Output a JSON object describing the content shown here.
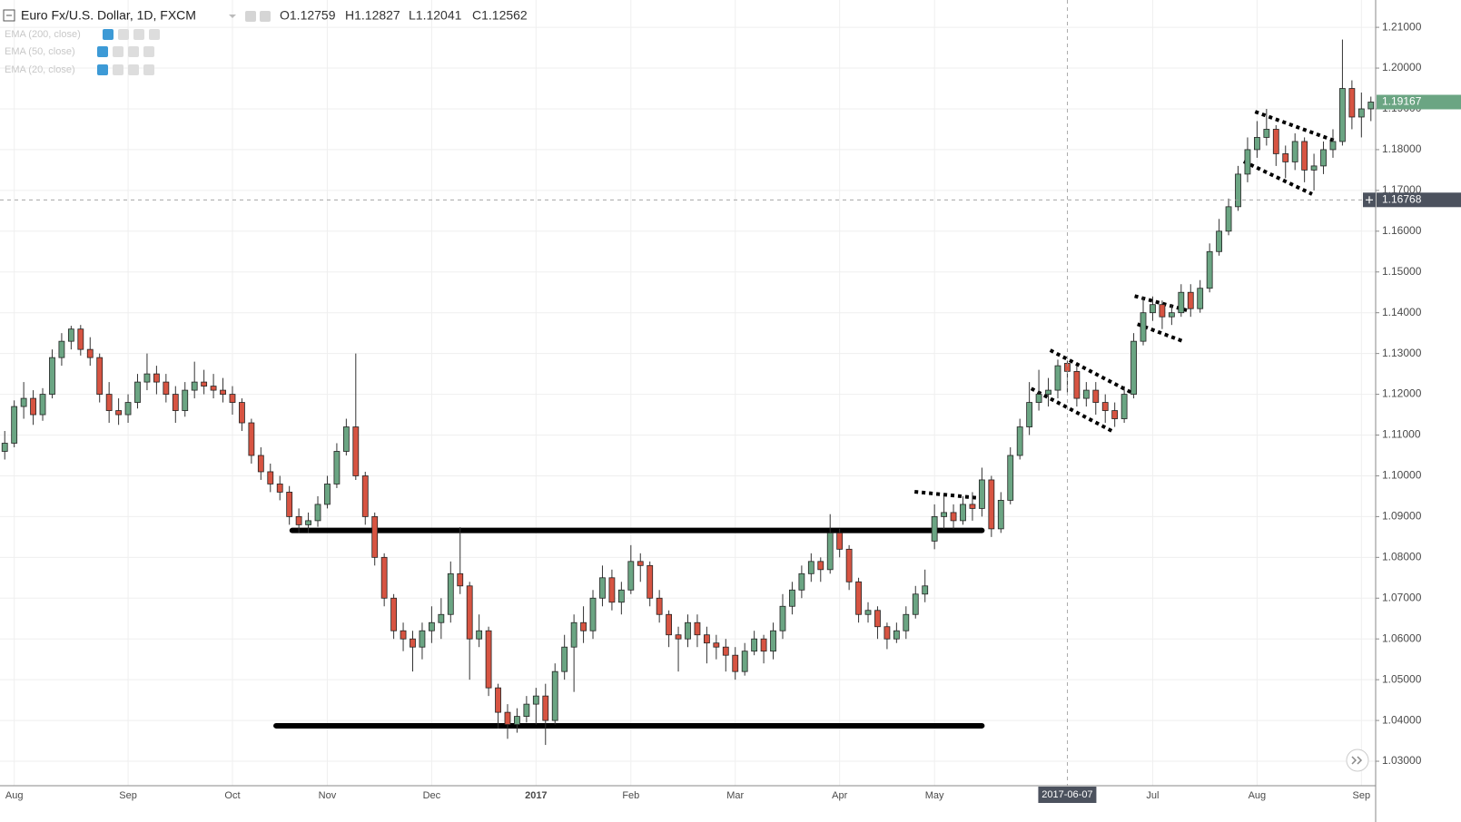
{
  "chart_data": {
    "type": "candlestick",
    "title": "Euro Fx/U.S. Dollar, 1D, FXCM",
    "ohlc_readout": [
      "O1.12759",
      "H1.12827",
      "L1.12041",
      "C1.12562"
    ],
    "indicators": [
      "EMA (200, close)",
      "EMA (50, close)",
      "EMA (20, close)"
    ],
    "up_color": "#6ba583",
    "down_color": "#d75442",
    "grid": true,
    "categories": [
      null,
      "Aug",
      null,
      null,
      null,
      null,
      null,
      null,
      null,
      null,
      null,
      null,
      null,
      "Sep",
      null,
      null,
      null,
      null,
      null,
      null,
      null,
      null,
      null,
      null,
      "Oct",
      null,
      null,
      null,
      null,
      null,
      null,
      null,
      null,
      null,
      "Nov",
      null,
      null,
      null,
      null,
      null,
      null,
      null,
      null,
      null,
      null,
      "Dec",
      null,
      null,
      null,
      null,
      null,
      null,
      null,
      null,
      null,
      null,
      "2017",
      null,
      null,
      null,
      null,
      null,
      null,
      null,
      null,
      null,
      "Feb",
      null,
      null,
      null,
      null,
      null,
      null,
      null,
      null,
      null,
      null,
      "Mar",
      null,
      null,
      null,
      null,
      null,
      null,
      null,
      null,
      null,
      null,
      "Apr",
      null,
      null,
      null,
      null,
      null,
      null,
      null,
      null,
      null,
      "May",
      null,
      null,
      null,
      null,
      null,
      null,
      null,
      null,
      null,
      null,
      null,
      null,
      null,
      null,
      null,
      null,
      null,
      null,
      null,
      null,
      null,
      null,
      "Jul",
      null,
      null,
      null,
      null,
      null,
      null,
      null,
      null,
      null,
      null,
      "Aug",
      null,
      null,
      null,
      null,
      null,
      null,
      null,
      null,
      null,
      null,
      "Sep",
      null
    ],
    "open": [
      1.106,
      1.108,
      1.117,
      1.119,
      1.115,
      1.12,
      1.129,
      1.133,
      1.136,
      1.131,
      1.129,
      1.12,
      1.116,
      1.115,
      1.118,
      1.123,
      1.125,
      1.123,
      1.12,
      1.116,
      1.121,
      1.123,
      1.122,
      1.121,
      1.12,
      1.118,
      1.113,
      1.105,
      1.101,
      1.098,
      1.096,
      1.09,
      1.088,
      1.089,
      1.093,
      1.098,
      1.106,
      1.112,
      1.1,
      1.09,
      1.08,
      1.07,
      1.062,
      1.06,
      1.058,
      1.062,
      1.064,
      1.066,
      1.076,
      1.073,
      1.06,
      1.062,
      1.048,
      1.042,
      1.039,
      1.041,
      1.044,
      1.046,
      1.04,
      1.052,
      1.058,
      1.064,
      1.062,
      1.07,
      1.075,
      1.069,
      1.072,
      1.079,
      1.078,
      1.07,
      1.066,
      1.061,
      1.06,
      1.064,
      1.061,
      1.059,
      1.058,
      1.056,
      1.052,
      1.057,
      1.06,
      1.057,
      1.062,
      1.068,
      1.072,
      1.076,
      1.079,
      1.077,
      1.086,
      1.082,
      1.074,
      1.066,
      1.067,
      1.063,
      1.06,
      1.062,
      1.066,
      1.071,
      1.084,
      1.09,
      1.091,
      1.089,
      1.093,
      1.092,
      1.099,
      1.087,
      1.094,
      1.105,
      1.112,
      1.118,
      1.12,
      1.121,
      1.12759,
      1.1256,
      1.119,
      1.121,
      1.118,
      1.116,
      1.114,
      1.12,
      1.133,
      1.14,
      1.142,
      1.139,
      1.14,
      1.145,
      1.141,
      1.146,
      1.155,
      1.16,
      1.166,
      1.174,
      1.18,
      1.183,
      1.185,
      1.179,
      1.177,
      1.182,
      1.175,
      1.176,
      1.18,
      1.182,
      1.195,
      1.188,
      1.19
    ],
    "high": [
      1.111,
      1.1185,
      1.123,
      1.121,
      1.1215,
      1.131,
      1.135,
      1.1368,
      1.137,
      1.134,
      1.13,
      1.123,
      1.119,
      1.12,
      1.125,
      1.13,
      1.127,
      1.125,
      1.122,
      1.123,
      1.128,
      1.126,
      1.125,
      1.124,
      1.122,
      1.119,
      1.114,
      1.107,
      1.103,
      1.1,
      1.0975,
      1.092,
      1.091,
      1.095,
      1.1,
      1.108,
      1.114,
      1.13,
      1.101,
      1.091,
      1.081,
      1.071,
      1.064,
      1.062,
      1.064,
      1.068,
      1.07,
      1.079,
      1.0874,
      1.074,
      1.066,
      1.063,
      1.049,
      1.044,
      1.043,
      1.046,
      1.048,
      1.049,
      1.054,
      1.061,
      1.066,
      1.068,
      1.072,
      1.078,
      1.077,
      1.074,
      1.083,
      1.081,
      1.079,
      1.072,
      1.067,
      1.063,
      1.066,
      1.066,
      1.063,
      1.061,
      1.06,
      1.058,
      1.059,
      1.062,
      1.061,
      1.064,
      1.071,
      1.074,
      1.078,
      1.081,
      1.08,
      1.0906,
      1.087,
      1.083,
      1.075,
      1.069,
      1.068,
      1.064,
      1.064,
      1.068,
      1.073,
      1.077,
      1.093,
      1.095,
      1.093,
      1.095,
      1.096,
      1.102,
      1.1,
      1.096,
      1.107,
      1.114,
      1.123,
      1.126,
      1.124,
      1.1285,
      1.12827,
      1.127,
      1.123,
      1.123,
      1.12,
      1.118,
      1.122,
      1.135,
      1.144,
      1.144,
      1.143,
      1.142,
      1.147,
      1.147,
      1.148,
      1.157,
      1.163,
      1.168,
      1.176,
      1.183,
      1.187,
      1.19,
      1.186,
      1.181,
      1.184,
      1.183,
      1.179,
      1.182,
      1.185,
      1.207,
      1.197,
      1.194,
      1.193
    ],
    "low": [
      1.104,
      1.107,
      1.114,
      1.1125,
      1.1135,
      1.119,
      1.127,
      1.131,
      1.1295,
      1.127,
      1.118,
      1.113,
      1.1125,
      1.113,
      1.1165,
      1.121,
      1.12,
      1.118,
      1.113,
      1.1145,
      1.119,
      1.12,
      1.119,
      1.118,
      1.115,
      1.111,
      1.103,
      1.099,
      1.096,
      1.094,
      1.088,
      1.086,
      1.086,
      1.0875,
      1.092,
      1.097,
      1.105,
      1.099,
      1.088,
      1.078,
      1.068,
      1.06,
      1.057,
      1.052,
      1.055,
      1.059,
      1.06,
      1.064,
      1.071,
      1.05,
      1.058,
      1.046,
      1.038,
      1.0355,
      1.037,
      1.0395,
      1.039,
      1.034,
      1.039,
      1.05,
      1.047,
      1.059,
      1.06,
      1.068,
      1.067,
      1.066,
      1.071,
      1.074,
      1.068,
      1.064,
      1.058,
      1.052,
      1.058,
      1.058,
      1.054,
      1.055,
      1.052,
      1.05,
      1.051,
      1.056,
      1.054,
      1.055,
      1.06,
      1.066,
      1.07,
      1.074,
      1.074,
      1.076,
      1.08,
      1.072,
      1.064,
      1.064,
      1.06,
      1.0575,
      1.059,
      1.06,
      1.065,
      1.069,
      1.082,
      1.087,
      1.087,
      1.088,
      1.089,
      1.09,
      1.085,
      1.086,
      1.093,
      1.104,
      1.11,
      1.116,
      1.117,
      1.119,
      1.12041,
      1.117,
      1.117,
      1.115,
      1.113,
      1.112,
      1.113,
      1.119,
      1.132,
      1.138,
      1.136,
      1.137,
      1.139,
      1.139,
      1.14,
      1.145,
      1.154,
      1.159,
      1.165,
      1.172,
      1.178,
      1.181,
      1.176,
      1.173,
      1.175,
      1.172,
      1.17,
      1.174,
      1.178,
      1.181,
      1.185,
      1.183,
      1.187
    ],
    "close": [
      1.108,
      1.117,
      1.119,
      1.115,
      1.12,
      1.129,
      1.133,
      1.136,
      1.131,
      1.129,
      1.12,
      1.116,
      1.115,
      1.118,
      1.123,
      1.125,
      1.123,
      1.12,
      1.116,
      1.121,
      1.123,
      1.122,
      1.121,
      1.12,
      1.118,
      1.113,
      1.105,
      1.101,
      1.098,
      1.096,
      1.09,
      1.088,
      1.089,
      1.093,
      1.098,
      1.106,
      1.112,
      1.1,
      1.09,
      1.08,
      1.07,
      1.062,
      1.06,
      1.058,
      1.062,
      1.064,
      1.066,
      1.076,
      1.073,
      1.06,
      1.062,
      1.048,
      1.042,
      1.039,
      1.041,
      1.044,
      1.046,
      1.04,
      1.052,
      1.058,
      1.064,
      1.062,
      1.07,
      1.075,
      1.069,
      1.072,
      1.079,
      1.078,
      1.07,
      1.066,
      1.061,
      1.06,
      1.064,
      1.061,
      1.059,
      1.058,
      1.056,
      1.052,
      1.057,
      1.06,
      1.057,
      1.062,
      1.068,
      1.072,
      1.076,
      1.079,
      1.077,
      1.086,
      1.082,
      1.074,
      1.066,
      1.067,
      1.063,
      1.06,
      1.062,
      1.066,
      1.071,
      1.073,
      1.09,
      1.091,
      1.089,
      1.093,
      1.092,
      1.099,
      1.087,
      1.094,
      1.105,
      1.112,
      1.118,
      1.12,
      1.121,
      1.127,
      1.12562,
      1.119,
      1.121,
      1.118,
      1.116,
      1.114,
      1.12,
      1.133,
      1.14,
      1.142,
      1.139,
      1.14,
      1.145,
      1.141,
      1.146,
      1.155,
      1.16,
      1.166,
      1.174,
      1.18,
      1.183,
      1.185,
      1.179,
      1.177,
      1.182,
      1.175,
      1.176,
      1.18,
      1.182,
      1.195,
      1.188,
      1.19,
      1.19167
    ],
    "ylim": [
      1.024,
      1.2167
    ],
    "yticks": [
      {
        "value": 1.03,
        "label": "1.03000"
      },
      {
        "value": 1.04,
        "label": "1.04000"
      },
      {
        "value": 1.05,
        "label": "1.05000"
      },
      {
        "value": 1.06,
        "label": "1.06000"
      },
      {
        "value": 1.07,
        "label": "1.07000"
      },
      {
        "value": 1.08,
        "label": "1.08000"
      },
      {
        "value": 1.09,
        "label": "1.09000"
      },
      {
        "value": 1.1,
        "label": "1.10000"
      },
      {
        "value": 1.11,
        "label": "1.11000"
      },
      {
        "value": 1.12,
        "label": "1.12000"
      },
      {
        "value": 1.13,
        "label": "1.13000"
      },
      {
        "value": 1.14,
        "label": "1.14000"
      },
      {
        "value": 1.15,
        "label": "1.15000"
      },
      {
        "value": 1.16,
        "label": "1.16000"
      },
      {
        "value": 1.17,
        "label": "1.17000"
      },
      {
        "value": 1.18,
        "label": "1.18000"
      },
      {
        "value": 1.19,
        "label": "1.19000"
      },
      {
        "value": 1.2,
        "label": "1.20000"
      },
      {
        "value": 1.21,
        "label": "1.21000"
      }
    ],
    "last_price": 1.19167,
    "last_price_color": "#6ba583",
    "crosshair": {
      "index": 112,
      "price": 1.16768,
      "date_label": "2017-06-07"
    },
    "drawings": [
      {
        "style": "solid",
        "points": [
          [
            30.3,
            1.0866
          ],
          [
            103.0,
            1.0866
          ]
        ]
      },
      {
        "style": "solid",
        "points": [
          [
            28.6,
            1.0387
          ],
          [
            103.0,
            1.0387
          ]
        ]
      },
      {
        "style": "dotted",
        "points": [
          [
            95.9,
            1.0961
          ],
          [
            102.9,
            1.0945
          ]
        ]
      },
      {
        "style": "dotted",
        "points": [
          [
            110.2,
            1.1308
          ],
          [
            118.7,
            1.1205
          ]
        ]
      },
      {
        "style": "dotted",
        "points": [
          [
            108.2,
            1.1214
          ],
          [
            116.7,
            1.111
          ]
        ]
      },
      {
        "style": "dotted",
        "points": [
          [
            119.1,
            1.1441
          ],
          [
            124.6,
            1.1406
          ]
        ]
      },
      {
        "style": "dotted",
        "points": [
          [
            119.4,
            1.1372
          ],
          [
            124.2,
            1.133
          ]
        ]
      },
      {
        "style": "dotted",
        "points": [
          [
            131.8,
            1.1893
          ],
          [
            140.4,
            1.182
          ]
        ]
      },
      {
        "style": "dotted",
        "points": [
          [
            130.6,
            1.1771
          ],
          [
            137.8,
            1.1691
          ]
        ]
      }
    ]
  }
}
